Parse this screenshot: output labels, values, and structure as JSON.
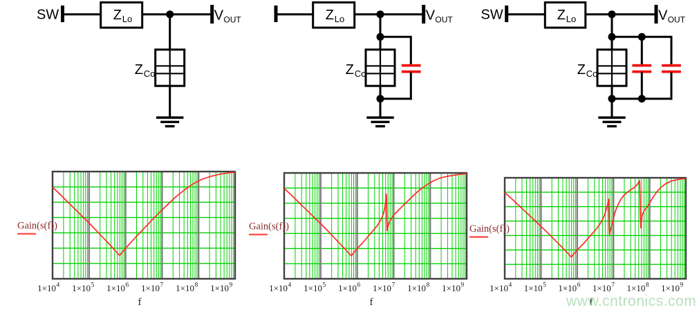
{
  "watermark": {
    "text": "www.cntronics.com",
    "color": "#aedcb2"
  },
  "palette": {
    "schematic_black": "#000000",
    "added_cap_red": "#ee1411",
    "grid_green": "#00cf00",
    "decade_gray": "#7e7e7e",
    "frame_gray": "#3f3f3f",
    "trace_red": "#ff2b25",
    "legend_text_red": "#8a2b2b",
    "legend_swatch_red": "#ff5550",
    "tick_text": "#1a1a1a"
  },
  "circuits": [
    {
      "name": "output-filter-no-added-cap",
      "input_label": "SW",
      "series_impedance": {
        "main": "Z",
        "sub": "Lo"
      },
      "shunt_impedance": {
        "main": "Z",
        "sub": "Co"
      },
      "output_label": {
        "main": "V",
        "sub": "OUT"
      },
      "added_parallel_caps": 0
    },
    {
      "name": "output-filter-one-added-cap",
      "series_impedance": {
        "main": "Z",
        "sub": "Lo"
      },
      "shunt_impedance": {
        "main": "Z",
        "sub": "Co"
      },
      "output_label": {
        "main": "V",
        "sub": "OUT"
      },
      "added_parallel_caps": 1
    },
    {
      "name": "output-filter-two-added-caps",
      "input_label": "SW",
      "series_impedance": {
        "main": "Z",
        "sub": "Lo"
      },
      "shunt_impedance": {
        "main": "Z",
        "sub": "Co"
      },
      "output_label": {
        "main": "V",
        "sub": "OUT"
      },
      "added_parallel_caps": 2
    }
  ],
  "chart_data": [
    {
      "type": "line",
      "legend": "Gain(s(f))",
      "xlabel": "f",
      "x_scale": "log",
      "x_range": [
        10000,
        1000000000
      ],
      "grid": true,
      "y_axis_note": "no y-axis tick labels shown; y given as fraction of plot height (0=bottom frame, 1=top frame)",
      "x_ticks": [
        {
          "base": "1×10",
          "exp": "4",
          "value": 10000
        },
        {
          "base": "1×10",
          "exp": "5",
          "value": 100000
        },
        {
          "base": "1×10",
          "exp": "6",
          "value": 1000000
        },
        {
          "base": "1×10",
          "exp": "7",
          "value": 10000000
        },
        {
          "base": "1×10",
          "exp": "8",
          "value": 100000000
        },
        {
          "base": "1×10",
          "exp": "9",
          "value": 1000000000
        }
      ],
      "series": [
        {
          "name": "Gain(s(f))",
          "points_log10f_vs_relgain": [
            [
              4.0,
              0.855
            ],
            [
              4.2,
              0.79
            ],
            [
              4.4,
              0.722
            ],
            [
              4.6,
              0.655
            ],
            [
              4.8,
              0.588
            ],
            [
              5.0,
              0.52
            ],
            [
              5.2,
              0.45
            ],
            [
              5.4,
              0.378
            ],
            [
              5.55,
              0.325
            ],
            [
              5.68,
              0.276
            ],
            [
              5.78,
              0.238
            ],
            [
              5.84,
              0.218
            ],
            [
              5.9,
              0.243
            ],
            [
              6.0,
              0.285
            ],
            [
              6.15,
              0.34
            ],
            [
              6.35,
              0.415
            ],
            [
              6.6,
              0.503
            ],
            [
              6.85,
              0.592
            ],
            [
              7.1,
              0.675
            ],
            [
              7.35,
              0.757
            ],
            [
              7.6,
              0.826
            ],
            [
              7.85,
              0.886
            ],
            [
              8.1,
              0.929
            ],
            [
              8.35,
              0.957
            ],
            [
              8.6,
              0.977
            ],
            [
              8.85,
              0.989
            ],
            [
              9.0,
              0.993
            ]
          ]
        }
      ]
    },
    {
      "type": "line",
      "legend": "Gain(s(f))",
      "xlabel": "f",
      "x_scale": "log",
      "x_range": [
        10000,
        1000000000
      ],
      "grid": true,
      "y_axis_note": "no y-axis tick labels shown; y given as fraction of plot height (0=bottom frame, 1=top frame)",
      "x_ticks": [
        {
          "base": "1×10",
          "exp": "4",
          "value": 10000
        },
        {
          "base": "1×10",
          "exp": "5",
          "value": 100000
        },
        {
          "base": "1×10",
          "exp": "6",
          "value": 1000000
        },
        {
          "base": "1×10",
          "exp": "7",
          "value": 10000000
        },
        {
          "base": "1×10",
          "exp": "8",
          "value": 100000000
        },
        {
          "base": "1×10",
          "exp": "9",
          "value": 1000000000
        }
      ],
      "series": [
        {
          "name": "Gain(s(f))",
          "points_log10f_vs_relgain": [
            [
              4.0,
              0.855
            ],
            [
              4.2,
              0.79
            ],
            [
              4.4,
              0.722
            ],
            [
              4.6,
              0.655
            ],
            [
              4.8,
              0.588
            ],
            [
              5.0,
              0.52
            ],
            [
              5.2,
              0.45
            ],
            [
              5.4,
              0.378
            ],
            [
              5.55,
              0.325
            ],
            [
              5.68,
              0.276
            ],
            [
              5.78,
              0.238
            ],
            [
              5.84,
              0.218
            ],
            [
              5.9,
              0.243
            ],
            [
              6.0,
              0.285
            ],
            [
              6.15,
              0.34
            ],
            [
              6.35,
              0.42
            ],
            [
              6.55,
              0.502
            ],
            [
              6.65,
              0.557
            ],
            [
              6.72,
              0.614
            ],
            [
              6.76,
              0.675
            ],
            [
              6.785,
              0.742
            ],
            [
              6.8,
              0.8
            ],
            [
              6.807,
              0.7
            ],
            [
              6.813,
              0.56
            ],
            [
              6.82,
              0.455
            ],
            [
              6.832,
              0.472
            ],
            [
              6.86,
              0.515
            ],
            [
              6.92,
              0.562
            ],
            [
              7.0,
              0.601
            ],
            [
              7.13,
              0.648
            ],
            [
              7.32,
              0.713
            ],
            [
              7.51,
              0.776
            ],
            [
              7.7,
              0.837
            ],
            [
              7.89,
              0.884
            ],
            [
              8.08,
              0.924
            ],
            [
              8.27,
              0.952
            ],
            [
              8.46,
              0.968
            ],
            [
              8.65,
              0.978
            ],
            [
              8.85,
              0.988
            ],
            [
              9.0,
              0.992
            ]
          ]
        }
      ]
    },
    {
      "type": "line",
      "legend": "Gain(s(f))",
      "xlabel": "f",
      "x_scale": "log",
      "x_range": [
        10000,
        1000000000
      ],
      "grid": true,
      "y_axis_note": "no y-axis tick labels shown; y given as fraction of plot height (0=bottom frame, 1=top frame)",
      "x_ticks": [
        {
          "base": "1×10",
          "exp": "4",
          "value": 10000
        },
        {
          "base": "1×10",
          "exp": "5",
          "value": 100000
        },
        {
          "base": "1×10",
          "exp": "6",
          "value": 1000000
        },
        {
          "base": "1×10",
          "exp": "7",
          "value": 10000000
        },
        {
          "base": "1×10",
          "exp": "8",
          "value": 100000000
        },
        {
          "base": "1×10",
          "exp": "9",
          "value": 1000000000
        }
      ],
      "series": [
        {
          "name": "Gain(s(f))",
          "points_log10f_vs_relgain": [
            [
              4.0,
              0.855
            ],
            [
              4.2,
              0.79
            ],
            [
              4.4,
              0.722
            ],
            [
              4.6,
              0.655
            ],
            [
              4.8,
              0.588
            ],
            [
              5.0,
              0.52
            ],
            [
              5.2,
              0.45
            ],
            [
              5.4,
              0.378
            ],
            [
              5.55,
              0.325
            ],
            [
              5.68,
              0.276
            ],
            [
              5.78,
              0.238
            ],
            [
              5.84,
              0.215
            ],
            [
              5.9,
              0.243
            ],
            [
              6.0,
              0.285
            ],
            [
              6.15,
              0.34
            ],
            [
              6.35,
              0.42
            ],
            [
              6.55,
              0.502
            ],
            [
              6.65,
              0.555
            ],
            [
              6.74,
              0.618
            ],
            [
              6.8,
              0.683
            ],
            [
              6.845,
              0.748
            ],
            [
              6.87,
              0.788
            ],
            [
              6.878,
              0.65
            ],
            [
              6.886,
              0.5
            ],
            [
              6.895,
              0.432
            ],
            [
              6.91,
              0.468
            ],
            [
              6.95,
              0.525
            ],
            [
              7.0,
              0.6
            ],
            [
              7.06,
              0.675
            ],
            [
              7.13,
              0.735
            ],
            [
              7.22,
              0.795
            ],
            [
              7.32,
              0.838
            ],
            [
              7.45,
              0.875
            ],
            [
              7.58,
              0.905
            ],
            [
              7.66,
              0.935
            ],
            [
              7.71,
              0.962
            ],
            [
              7.725,
              0.972
            ],
            [
              7.735,
              0.85
            ],
            [
              7.745,
              0.65
            ],
            [
              7.755,
              0.505
            ],
            [
              7.77,
              0.565
            ],
            [
              7.8,
              0.635
            ],
            [
              7.85,
              0.675
            ],
            [
              7.92,
              0.705
            ],
            [
              8.0,
              0.75
            ],
            [
              8.1,
              0.81
            ],
            [
              8.2,
              0.862
            ],
            [
              8.32,
              0.908
            ],
            [
              8.45,
              0.943
            ],
            [
              8.6,
              0.968
            ],
            [
              8.8,
              0.985
            ],
            [
              9.0,
              0.992
            ]
          ]
        }
      ]
    }
  ]
}
